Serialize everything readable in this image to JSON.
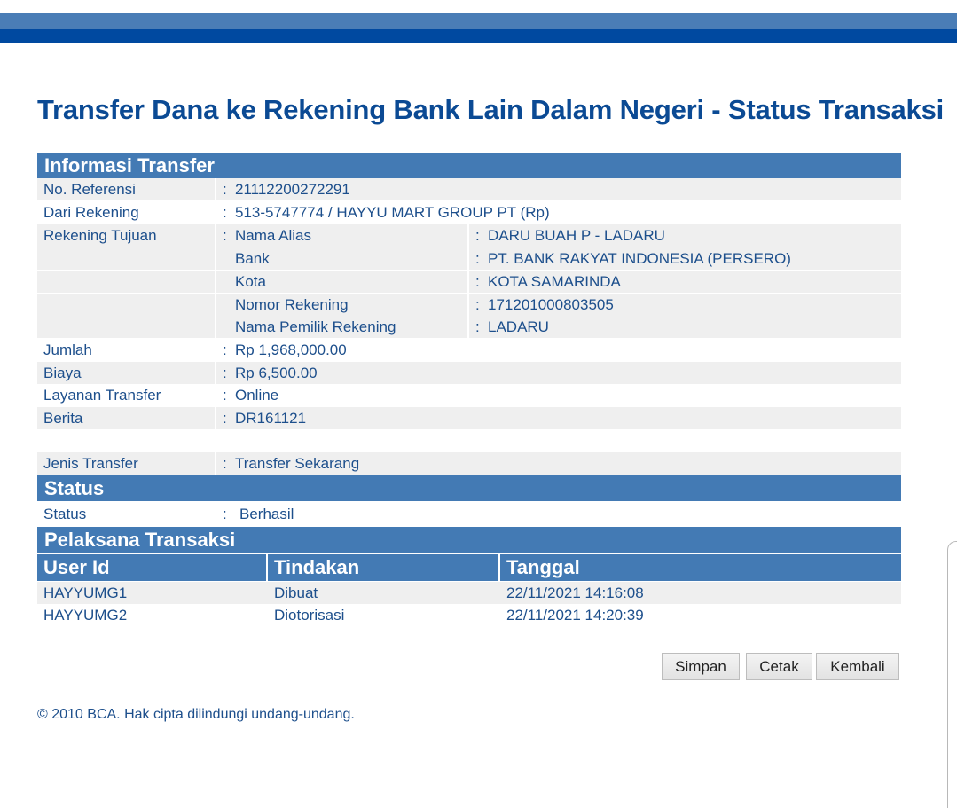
{
  "title": "Transfer Dana ke Rekening Bank Lain Dalam Negeri - Status Transaksi",
  "info": {
    "header": "Informasi Transfer",
    "no_referensi": {
      "label": "No. Referensi",
      "value": "21112200272291"
    },
    "dari_rekening": {
      "label": "Dari Rekening",
      "value": "513-5747774 / HAYYU MART GROUP PT  (Rp)"
    },
    "rekening_tujuan": {
      "label": "Rekening Tujuan",
      "items": [
        {
          "label": "Nama Alias",
          "value": "DARU BUAH P - LADARU"
        },
        {
          "label": "Bank",
          "value": "PT. BANK RAKYAT INDONESIA (PERSERO)"
        },
        {
          "label": "Kota",
          "value": "KOTA SAMARINDA"
        },
        {
          "label": "Nomor Rekening",
          "value": "171201000803505"
        },
        {
          "label": "Nama Pemilik Rekening",
          "value": "LADARU"
        }
      ]
    },
    "jumlah": {
      "label": "Jumlah",
      "value": "Rp 1,968,000.00"
    },
    "biaya": {
      "label": "Biaya",
      "value": "Rp 6,500.00"
    },
    "layanan": {
      "label": "Layanan Transfer",
      "value": "Online"
    },
    "berita": {
      "label": "Berita",
      "value": "DR161121"
    },
    "jenis": {
      "label": "Jenis Transfer",
      "value": "Transfer Sekarang"
    }
  },
  "status": {
    "header": "Status",
    "label": "Status",
    "value": "Berhasil"
  },
  "pelaksana": {
    "header": "Pelaksana Transaksi",
    "columns": [
      "User Id",
      "Tindakan",
      "Tanggal"
    ],
    "rows": [
      [
        "HAYYUMG1",
        "Dibuat",
        "22/11/2021 14:16:08"
      ],
      [
        "HAYYUMG2",
        "Diotorisasi",
        "22/11/2021 14:20:39"
      ]
    ]
  },
  "buttons": {
    "simpan": "Simpan",
    "cetak": "Cetak",
    "kembali": "Kembali"
  },
  "colon": ":",
  "footer": "©  2010 BCA. Hak cipta dilindungi undang-undang.",
  "colors": {
    "header_bg": "#437ab4",
    "text": "#1d4f8c",
    "title": "#0b4a94",
    "top_bar": "#0049a0"
  }
}
